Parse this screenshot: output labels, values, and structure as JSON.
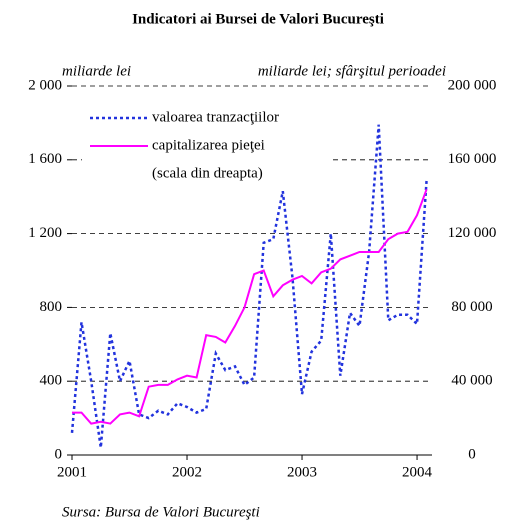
{
  "chart_data": {
    "type": "line",
    "title": "Indicatori ai Bursei de Valori Bucureşti",
    "ylabel": "miliarde lei",
    "y2label": "miliarde lei; sfârşitul perioadei",
    "annotation": "(scala din dreapta)",
    "source": "Sursa: Bursa de Valori Bucureşti",
    "x": [
      2001,
      2001.083,
      2001.167,
      2001.25,
      2001.333,
      2001.417,
      2001.5,
      2001.583,
      2001.667,
      2001.75,
      2001.833,
      2001.917,
      2002,
      2002.083,
      2002.167,
      2002.25,
      2002.333,
      2002.417,
      2002.5,
      2002.583,
      2002.667,
      2002.75,
      2002.833,
      2002.917,
      2003,
      2003.083,
      2003.167,
      2003.25,
      2003.333,
      2003.417,
      2003.5,
      2003.583,
      2003.667,
      2003.75,
      2003.833,
      2003.917,
      2004,
      2004.083
    ],
    "xlim": [
      2001,
      2004.13
    ],
    "xticks": [
      2001,
      2002,
      2003,
      2004
    ],
    "ylim": [
      0,
      2000
    ],
    "yticks": [
      0,
      400,
      800,
      {
        "value": 1200,
        "label": "1 200"
      },
      {
        "value": 1600,
        "label": "1 600"
      },
      {
        "value": 2000,
        "label": "2 000"
      }
    ],
    "y2lim": [
      0,
      200000
    ],
    "y2ticks": [
      0,
      {
        "value": 40000,
        "label": "40 000"
      },
      {
        "value": 80000,
        "label": "80 000"
      },
      {
        "value": 120000,
        "label": "120 000"
      },
      {
        "value": 160000,
        "label": "160 000"
      },
      {
        "value": 200000,
        "label": "200 000"
      }
    ],
    "grid": true,
    "series": [
      {
        "name": "valoarea tranzacţiilor",
        "color": "#2233dd",
        "dash": "dotted",
        "values": [
          120,
          720,
          400,
          40,
          660,
          400,
          510,
          220,
          200,
          240,
          220,
          280,
          260,
          230,
          250,
          550,
          460,
          480,
          380,
          420,
          1150,
          1170,
          1430,
          960,
          330,
          560,
          620,
          1200,
          430,
          770,
          700,
          1100,
          1790,
          730,
          760,
          760,
          710,
          1490
        ]
      },
      {
        "name": "capitalizarea pieţei",
        "color": "#ff00ff",
        "dash": "solid",
        "axis": "y2",
        "values": [
          23000,
          23000,
          17000,
          18000,
          17000,
          22000,
          23000,
          21000,
          37000,
          38000,
          38000,
          41000,
          43000,
          42000,
          65000,
          64000,
          61000,
          70000,
          80000,
          98000,
          100000,
          86000,
          92000,
          95000,
          97000,
          93000,
          99000,
          101000,
          106000,
          108000,
          110000,
          110000,
          110000,
          117000,
          120000,
          121000,
          130000,
          144000
        ]
      }
    ]
  }
}
